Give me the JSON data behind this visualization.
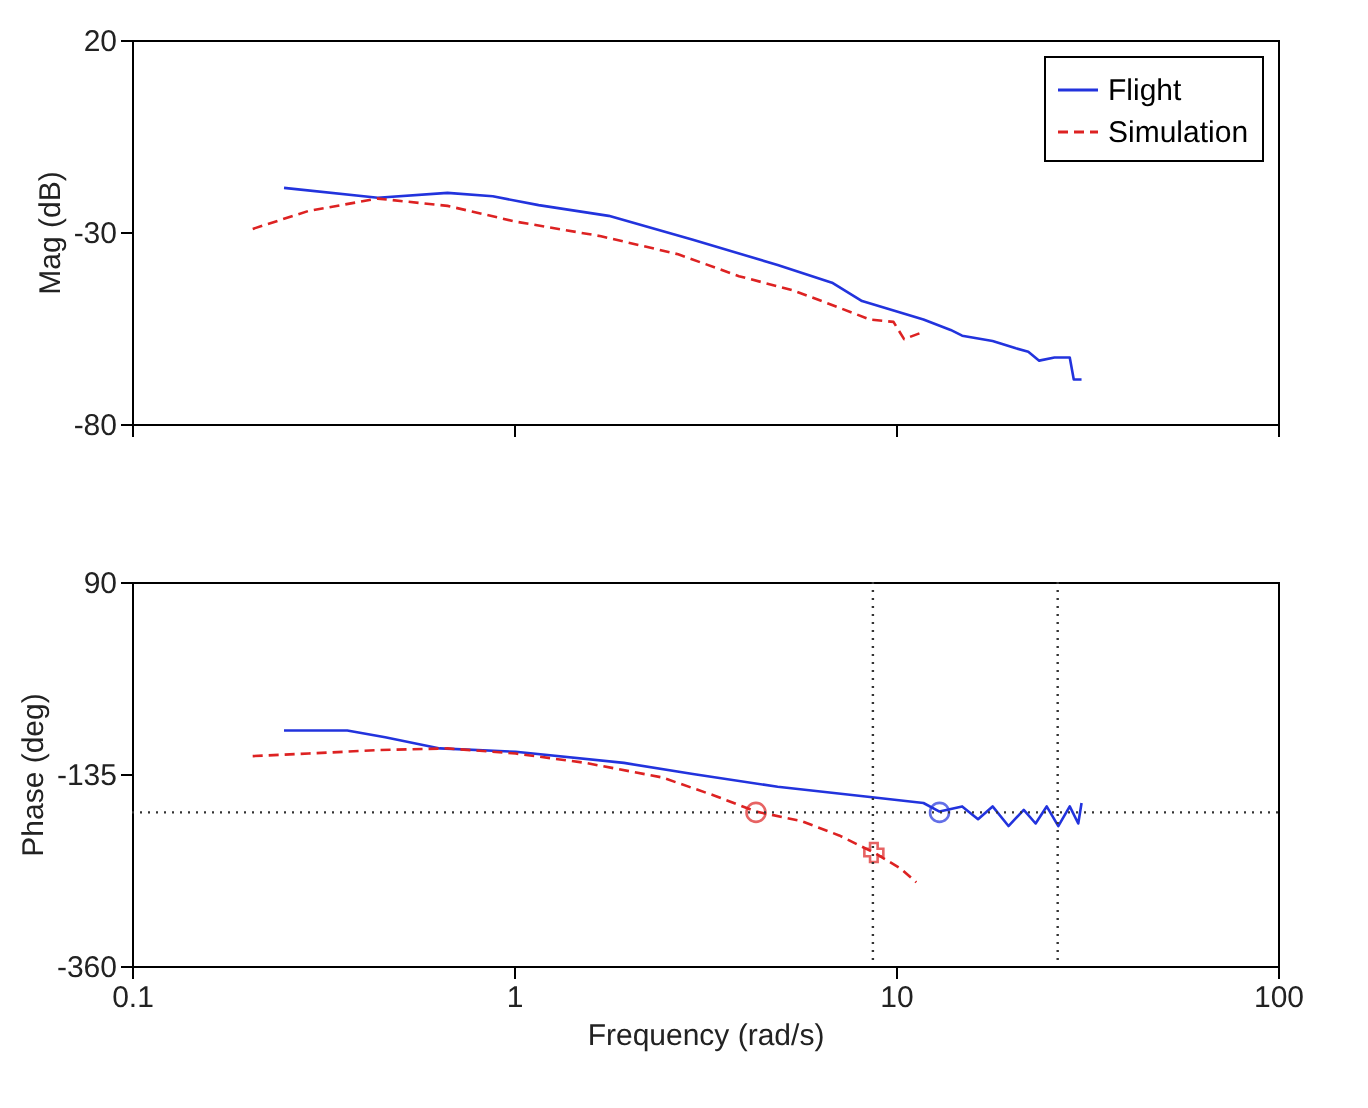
{
  "chart_data": [
    {
      "type": "line",
      "ylabel": "Mag (dB)",
      "log": "x",
      "xlim": [
        0.1,
        100
      ],
      "xticks": [
        0.1,
        1,
        10,
        100
      ],
      "ylim": [
        -80,
        20
      ],
      "yticks": [
        20,
        -30,
        -80
      ],
      "tick_labels": "y",
      "legend": "top right",
      "grid": false,
      "series": [
        {
          "name": "Flight",
          "color": "#2233dd",
          "line_style": "solid",
          "x": [
            0.25,
            0.44,
            0.67,
            0.88,
            1.16,
            1.77,
            2.94,
            4.9,
            6.8,
            8.15,
            11.8,
            13.9,
            14.9,
            17.9,
            20.6,
            22.2,
            23.7,
            26,
            28.5,
            29.2,
            30.6
          ],
          "values": [
            -18.5,
            -21.1,
            -19.8,
            -20.7,
            -23,
            -25.8,
            -32,
            -38.6,
            -43.2,
            -48,
            -52.8,
            -55.5,
            -57,
            -58.4,
            -60.3,
            -61.2,
            -63.5,
            -62.7,
            -62.7,
            -68.4,
            -68.4
          ]
        },
        {
          "name": "Simulation",
          "color": "#dd2222",
          "line_style": "dashed",
          "x": [
            0.207,
            0.29,
            0.44,
            0.67,
            1.01,
            1.69,
            2.69,
            3.88,
            5.38,
            6.8,
            8.55,
            9.85,
            10.5,
            11.8
          ],
          "values": [
            -29.2,
            -24.5,
            -21.3,
            -23.2,
            -27.3,
            -31.1,
            -35.8,
            -41.5,
            -45.2,
            -49,
            -52.8,
            -53.4,
            -57.9,
            -56
          ]
        }
      ]
    },
    {
      "type": "line",
      "xlabel": "Frequency (rad/s)",
      "ylabel": "Phase (deg)",
      "log": "x",
      "xlim": [
        0.1,
        100
      ],
      "xticks": [
        0.1,
        1,
        10,
        100
      ],
      "ylim": [
        -360,
        90
      ],
      "yticks": [
        90,
        -135,
        -360
      ],
      "grid": false,
      "series": [
        {
          "color": "#2233dd",
          "line_style": "solid",
          "x": [
            0.25,
            0.366,
            0.46,
            0.64,
            1.01,
            1.94,
            2.94,
            4.9,
            8.55,
            11.8,
            13,
            14.9,
            16.4,
            17.9,
            19.7,
            21.6,
            23.2,
            24.8,
            26.6,
            28.5,
            30,
            30.6
          ],
          "values": [
            -84,
            -84,
            -92,
            -105,
            -109,
            -122,
            -135,
            -150,
            -162,
            -169,
            -179,
            -173,
            -188,
            -173,
            -196,
            -177,
            -193,
            -173,
            -196,
            -173,
            -193,
            -169
          ]
        },
        {
          "color": "#dd2222",
          "line_style": "dashed",
          "x": [
            0.207,
            0.29,
            0.44,
            0.67,
            1.01,
            1.54,
            2.44,
            3.38,
            4.3,
            5.64,
            7.1,
            8.75,
            10.3,
            11.3
          ],
          "values": [
            -114,
            -111,
            -107,
            -105,
            -111,
            -122,
            -139,
            -161,
            -179,
            -190,
            -207,
            -227,
            -246,
            -262
          ]
        },
        {
          "type": "scatter",
          "marker": "circle",
          "color": "#dd2222",
          "x": [
            4.3
          ],
          "values": [
            -180
          ]
        },
        {
          "type": "scatter",
          "marker": "circle",
          "color": "#2233dd",
          "x": [
            13
          ],
          "values": [
            -180
          ]
        },
        {
          "type": "scatter",
          "marker": "cross",
          "color": "#dd2222",
          "x": [
            8.75
          ],
          "values": [
            -227
          ]
        }
      ],
      "ref_lines": [
        {
          "axis": "y",
          "value": -180,
          "color": "#333333",
          "line_style": "dotted"
        },
        {
          "axis": "x",
          "value": 8.7,
          "color": "#333333",
          "line_style": "dotted"
        },
        {
          "axis": "x",
          "value": 26.5,
          "color": "#333333",
          "line_style": "dotted"
        }
      ]
    }
  ]
}
